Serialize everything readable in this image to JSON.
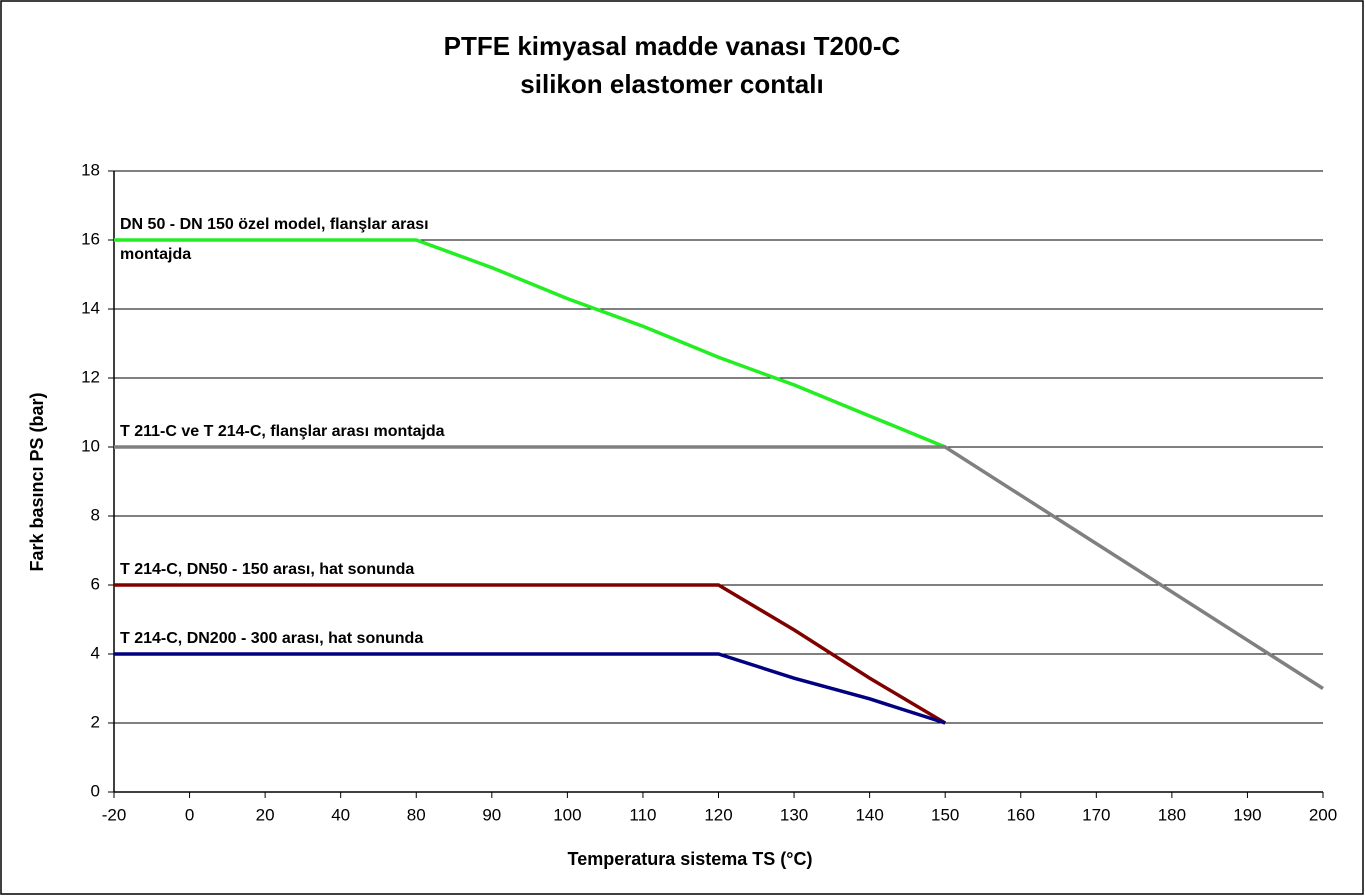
{
  "chart_data": {
    "type": "line",
    "title": "PTFE kimyasal madde vanası T200-C",
    "subtitle": "silikon elastomer contalı",
    "x_label": "Temperatura sistema TS (°C)",
    "y_label": "Fark basıncı PS (bar)",
    "categories": [
      "-20",
      "0",
      "20",
      "40",
      "80",
      "90",
      "100",
      "110",
      "120",
      "130",
      "140",
      "150",
      "160",
      "170",
      "180",
      "190",
      "200"
    ],
    "series": [
      {
        "name": "DN 50 - DN 150 özel model, flanşlar arası montajda",
        "color": "#22ee22",
        "values": [
          16,
          16,
          16,
          16,
          16,
          15.2,
          14.3,
          13.5,
          12.6,
          11.8,
          10.9,
          10,
          null,
          null,
          null,
          null,
          null
        ]
      },
      {
        "name": "T 211-C ve T 214-C, flanşlar arası montajda",
        "color": "#808080",
        "values": [
          10,
          10,
          10,
          10,
          10,
          10,
          10,
          10,
          10,
          10,
          10,
          10,
          8.6,
          7.2,
          5.8,
          4.4,
          3
        ]
      },
      {
        "name": "T 214-C, DN50 - 150 arası, hat sonunda",
        "color": "#800000",
        "values": [
          6,
          6,
          6,
          6,
          6,
          6,
          6,
          6,
          6,
          4.7,
          3.3,
          2,
          null,
          null,
          null,
          null,
          null
        ]
      },
      {
        "name": "T 214-C, DN200 - 300 arası, hat sonunda",
        "color": "#000080",
        "values": [
          4,
          4,
          4,
          4,
          4,
          4,
          4,
          4,
          4,
          3.3,
          2.7,
          2,
          null,
          null,
          null,
          null,
          null
        ]
      }
    ],
    "ylim": [
      0,
      18
    ],
    "yticks": [
      0,
      2,
      4,
      6,
      8,
      10,
      12,
      14,
      16,
      18
    ],
    "grid": true
  }
}
